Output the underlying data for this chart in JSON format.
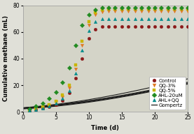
{
  "title": "",
  "xlabel": "Time (d)",
  "ylabel": "Cumulative methane (mL)",
  "xlim": [
    0,
    25
  ],
  "ylim": [
    0,
    80
  ],
  "xticks": [
    0,
    5,
    10,
    15,
    20,
    25
  ],
  "yticks": [
    0,
    20,
    40,
    60,
    80
  ],
  "series": {
    "Control": {
      "color": "#8B1A1A",
      "marker": "o",
      "A": 64.5,
      "u": 1.05,
      "lambda": 5.2
    },
    "QQ-3%": {
      "color": "#E07820",
      "marker": "v",
      "A": 75.5,
      "u": 1.08,
      "lambda": 5.0
    },
    "QQ-5%": {
      "color": "#C8B400",
      "marker": "s",
      "A": 77.0,
      "u": 1.1,
      "lambda": 4.9
    },
    "AHL-20uM": {
      "color": "#228B22",
      "marker": "D",
      "A": 78.5,
      "u": 1.2,
      "lambda": 4.4
    },
    "AHL+QQ": {
      "color": "#008B8B",
      "marker": "^",
      "A": 70.0,
      "u": 1.06,
      "lambda": 5.1
    }
  },
  "data_points": {
    "Control": [
      0.8,
      1.5,
      2.5,
      3.8,
      5.5,
      8.5,
      14.0,
      25.0,
      40.0,
      55.0,
      62.0,
      64.0,
      64.0,
      64.0,
      64.0,
      64.0,
      64.0,
      64.0,
      64.0,
      64.0,
      64.0,
      64.0,
      64.0,
      64.0,
      64.0
    ],
    "QQ-3%": [
      1.0,
      2.0,
      3.2,
      5.0,
      7.5,
      11.0,
      18.0,
      32.0,
      50.0,
      65.0,
      73.0,
      75.0,
      75.5,
      75.5,
      75.5,
      75.5,
      75.5,
      75.5,
      75.5,
      75.5,
      75.5,
      75.5,
      75.5,
      75.5,
      75.5
    ],
    "QQ-5%": [
      1.2,
      2.2,
      3.5,
      5.5,
      8.0,
      12.5,
      20.0,
      35.0,
      53.0,
      68.0,
      74.5,
      76.5,
      77.0,
      77.0,
      77.0,
      77.0,
      77.0,
      77.0,
      77.0,
      77.0,
      77.0,
      77.0,
      77.0,
      77.0,
      77.0
    ],
    "AHL-20uM": [
      2.0,
      4.0,
      6.5,
      10.0,
      15.0,
      22.0,
      33.0,
      50.0,
      65.0,
      73.0,
      76.5,
      78.0,
      78.0,
      78.0,
      78.0,
      78.0,
      78.0,
      78.0,
      78.0,
      78.0,
      78.0,
      78.0,
      78.0,
      78.0,
      78.0
    ],
    "AHL+QQ": [
      0.9,
      1.8,
      2.8,
      4.5,
      6.5,
      10.0,
      16.0,
      29.0,
      46.0,
      61.0,
      68.0,
      70.0,
      70.0,
      70.0,
      70.0,
      70.0,
      70.0,
      70.0,
      70.0,
      70.0,
      70.0,
      70.0,
      70.0,
      70.0,
      70.0
    ]
  },
  "background_color": "#e0e0d8",
  "plot_bg_color": "#d4d4c8",
  "legend_fontsize": 5.0,
  "axis_fontsize": 6,
  "tick_fontsize": 5.5
}
